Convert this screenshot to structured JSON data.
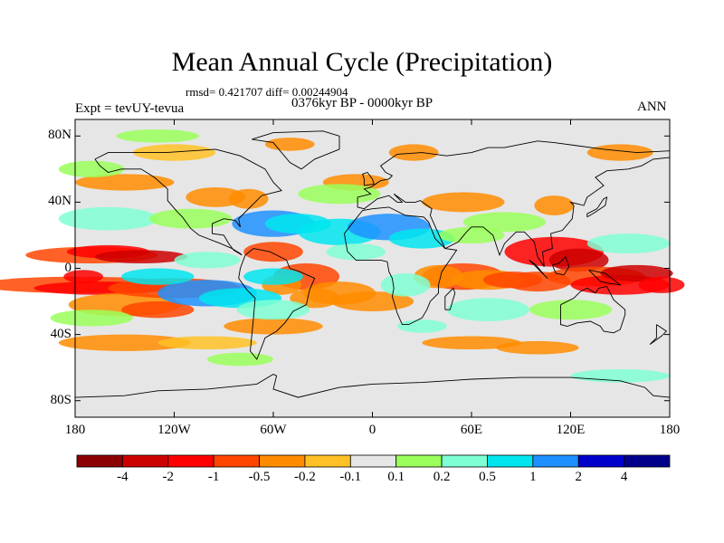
{
  "figure": {
    "title": "Mean Annual Cycle (Precipitation)",
    "stats_line": "rmsd= 0.421707 diff= 0.00244904",
    "subtitle": "0376kyr BP - 0000kyr BP",
    "experiment_label": "Expt = tevUY-tevua",
    "season_label": "ANN"
  },
  "map": {
    "projection": "cylindrical-equidistant",
    "lon_range": [
      -180,
      180
    ],
    "lat_range": [
      -90,
      90
    ],
    "background_color": "#e6e6e6",
    "land_outline_color": "#000000",
    "lat_ticks": [
      {
        "value": 80,
        "label": "80N"
      },
      {
        "value": 40,
        "label": "40N"
      },
      {
        "value": 0,
        "label": "0"
      },
      {
        "value": -40,
        "label": "40S"
      },
      {
        "value": -80,
        "label": "80S"
      }
    ],
    "lon_ticks": [
      {
        "value": -180,
        "label": "180"
      },
      {
        "value": -120,
        "label": "120W"
      },
      {
        "value": -60,
        "label": "60W"
      },
      {
        "value": 0,
        "label": "0"
      },
      {
        "value": 60,
        "label": "60E"
      },
      {
        "value": 120,
        "label": "120E"
      },
      {
        "value": 180,
        "label": "180"
      }
    ]
  },
  "colorbar": {
    "colors": [
      "#8b0000",
      "#cd0000",
      "#ff0000",
      "#ff4500",
      "#ff8c00",
      "#ffc125",
      "#e6e6e6",
      "#9aff5a",
      "#7fffd4",
      "#00e5ee",
      "#1e90ff",
      "#0000cd",
      "#00008b"
    ],
    "labels": [
      "-4",
      "-2",
      "-1",
      "-0.5",
      "-0.2",
      "-0.1",
      "0.1",
      "0.2",
      "0.5",
      "1",
      "2",
      "4"
    ]
  }
}
